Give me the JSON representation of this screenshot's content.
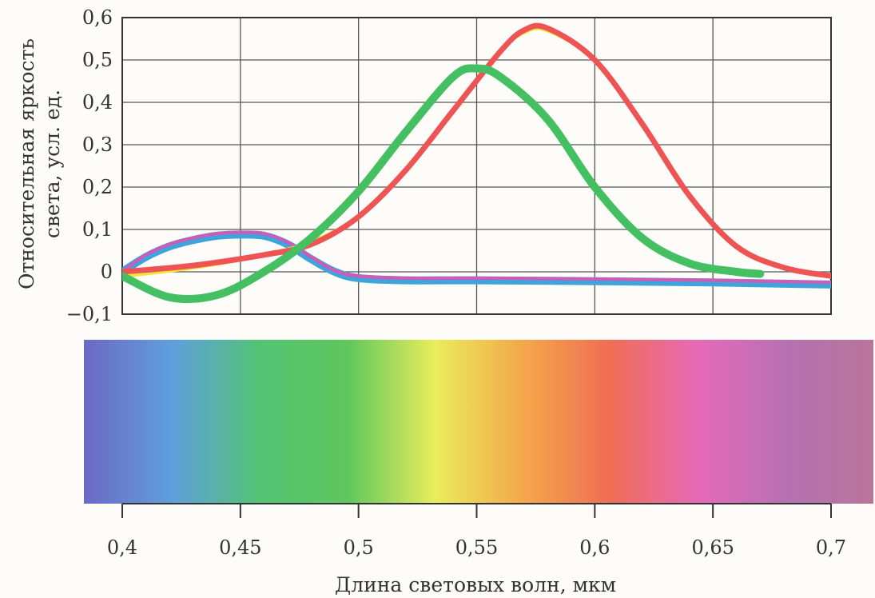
{
  "chart_data": {
    "type": "line",
    "title": "",
    "xlabel": "Длина световых волн, мкм",
    "ylabel_line1": "Относительная яркость",
    "ylabel_line2": "света,  усл. ед.",
    "xlim": [
      0.4,
      0.7
    ],
    "ylim": [
      -0.1,
      0.6
    ],
    "x_ticks": [
      {
        "value": 0.4,
        "label": "0,4"
      },
      {
        "value": 0.45,
        "label": "0,45"
      },
      {
        "value": 0.5,
        "label": "0,5"
      },
      {
        "value": 0.55,
        "label": "0,55"
      },
      {
        "value": 0.6,
        "label": "0,6"
      },
      {
        "value": 0.65,
        "label": "0,65"
      },
      {
        "value": 0.7,
        "label": "0,7"
      }
    ],
    "y_ticks": [
      {
        "value": 0.6,
        "label": "0,6"
      },
      {
        "value": 0.5,
        "label": "0,5"
      },
      {
        "value": 0.4,
        "label": "0,4"
      },
      {
        "value": 0.3,
        "label": "0,3"
      },
      {
        "value": 0.2,
        "label": "0,2"
      },
      {
        "value": 0.1,
        "label": "0,1"
      },
      {
        "value": 0.0,
        "label": "0"
      },
      {
        "value": -0.1,
        "label": "−0,1"
      }
    ],
    "grid": true,
    "legend": "none",
    "series": [
      {
        "color": "#3fa3dc",
        "x": [
          0.4,
          0.41,
          0.42,
          0.43,
          0.44,
          0.45,
          0.46,
          0.47,
          0.48,
          0.49,
          0.5,
          0.52,
          0.55,
          0.6,
          0.65,
          0.7
        ],
        "y": [
          0.0,
          0.035,
          0.06,
          0.075,
          0.085,
          0.088,
          0.085,
          0.065,
          0.03,
          0.0,
          -0.015,
          -0.02,
          -0.02,
          -0.022,
          -0.025,
          -0.03
        ]
      },
      {
        "color": "#d05ab5",
        "x": [
          0.4,
          0.41,
          0.42,
          0.43,
          0.44,
          0.45,
          0.46,
          0.47,
          0.48,
          0.49,
          0.5,
          0.52,
          0.55,
          0.6,
          0.65,
          0.7
        ],
        "y": [
          0.0,
          0.04,
          0.065,
          0.08,
          0.09,
          0.093,
          0.09,
          0.07,
          0.035,
          0.003,
          -0.01,
          -0.015,
          -0.015,
          -0.017,
          -0.02,
          -0.025
        ]
      },
      {
        "color": "#f0e53a",
        "x": [
          0.4,
          0.43,
          0.46,
          0.48,
          0.5,
          0.52,
          0.54,
          0.56,
          0.57,
          0.58,
          0.6,
          0.62,
          0.64,
          0.66,
          0.68,
          0.7
        ],
        "y": [
          -0.01,
          0.01,
          0.04,
          0.07,
          0.13,
          0.24,
          0.38,
          0.52,
          0.565,
          0.57,
          0.5,
          0.35,
          0.18,
          0.06,
          0.01,
          -0.01
        ]
      },
      {
        "color": "#ef5454",
        "x": [
          0.4,
          0.43,
          0.46,
          0.48,
          0.5,
          0.52,
          0.54,
          0.56,
          0.57,
          0.58,
          0.6,
          0.62,
          0.64,
          0.66,
          0.68,
          0.7
        ],
        "y": [
          0.0,
          0.015,
          0.04,
          0.065,
          0.13,
          0.24,
          0.38,
          0.52,
          0.57,
          0.575,
          0.5,
          0.35,
          0.18,
          0.06,
          0.01,
          -0.01
        ]
      },
      {
        "color": "#44c063",
        "x": [
          0.4,
          0.42,
          0.44,
          0.46,
          0.48,
          0.5,
          0.52,
          0.54,
          0.55,
          0.56,
          0.58,
          0.6,
          0.62,
          0.64,
          0.66,
          0.67
        ],
        "y": [
          -0.01,
          -0.06,
          -0.055,
          0.0,
          0.08,
          0.19,
          0.33,
          0.46,
          0.48,
          0.46,
          0.36,
          0.2,
          0.08,
          0.02,
          0.0,
          -0.005
        ]
      }
    ]
  },
  "spectrum_colors": [
    "#6d68c4",
    "#5f9fde",
    "#53c374",
    "#5ec75d",
    "#e9ed5b",
    "#f4a84a",
    "#f06d55",
    "#e66ab8",
    "#b771b2",
    "#b8759c"
  ]
}
